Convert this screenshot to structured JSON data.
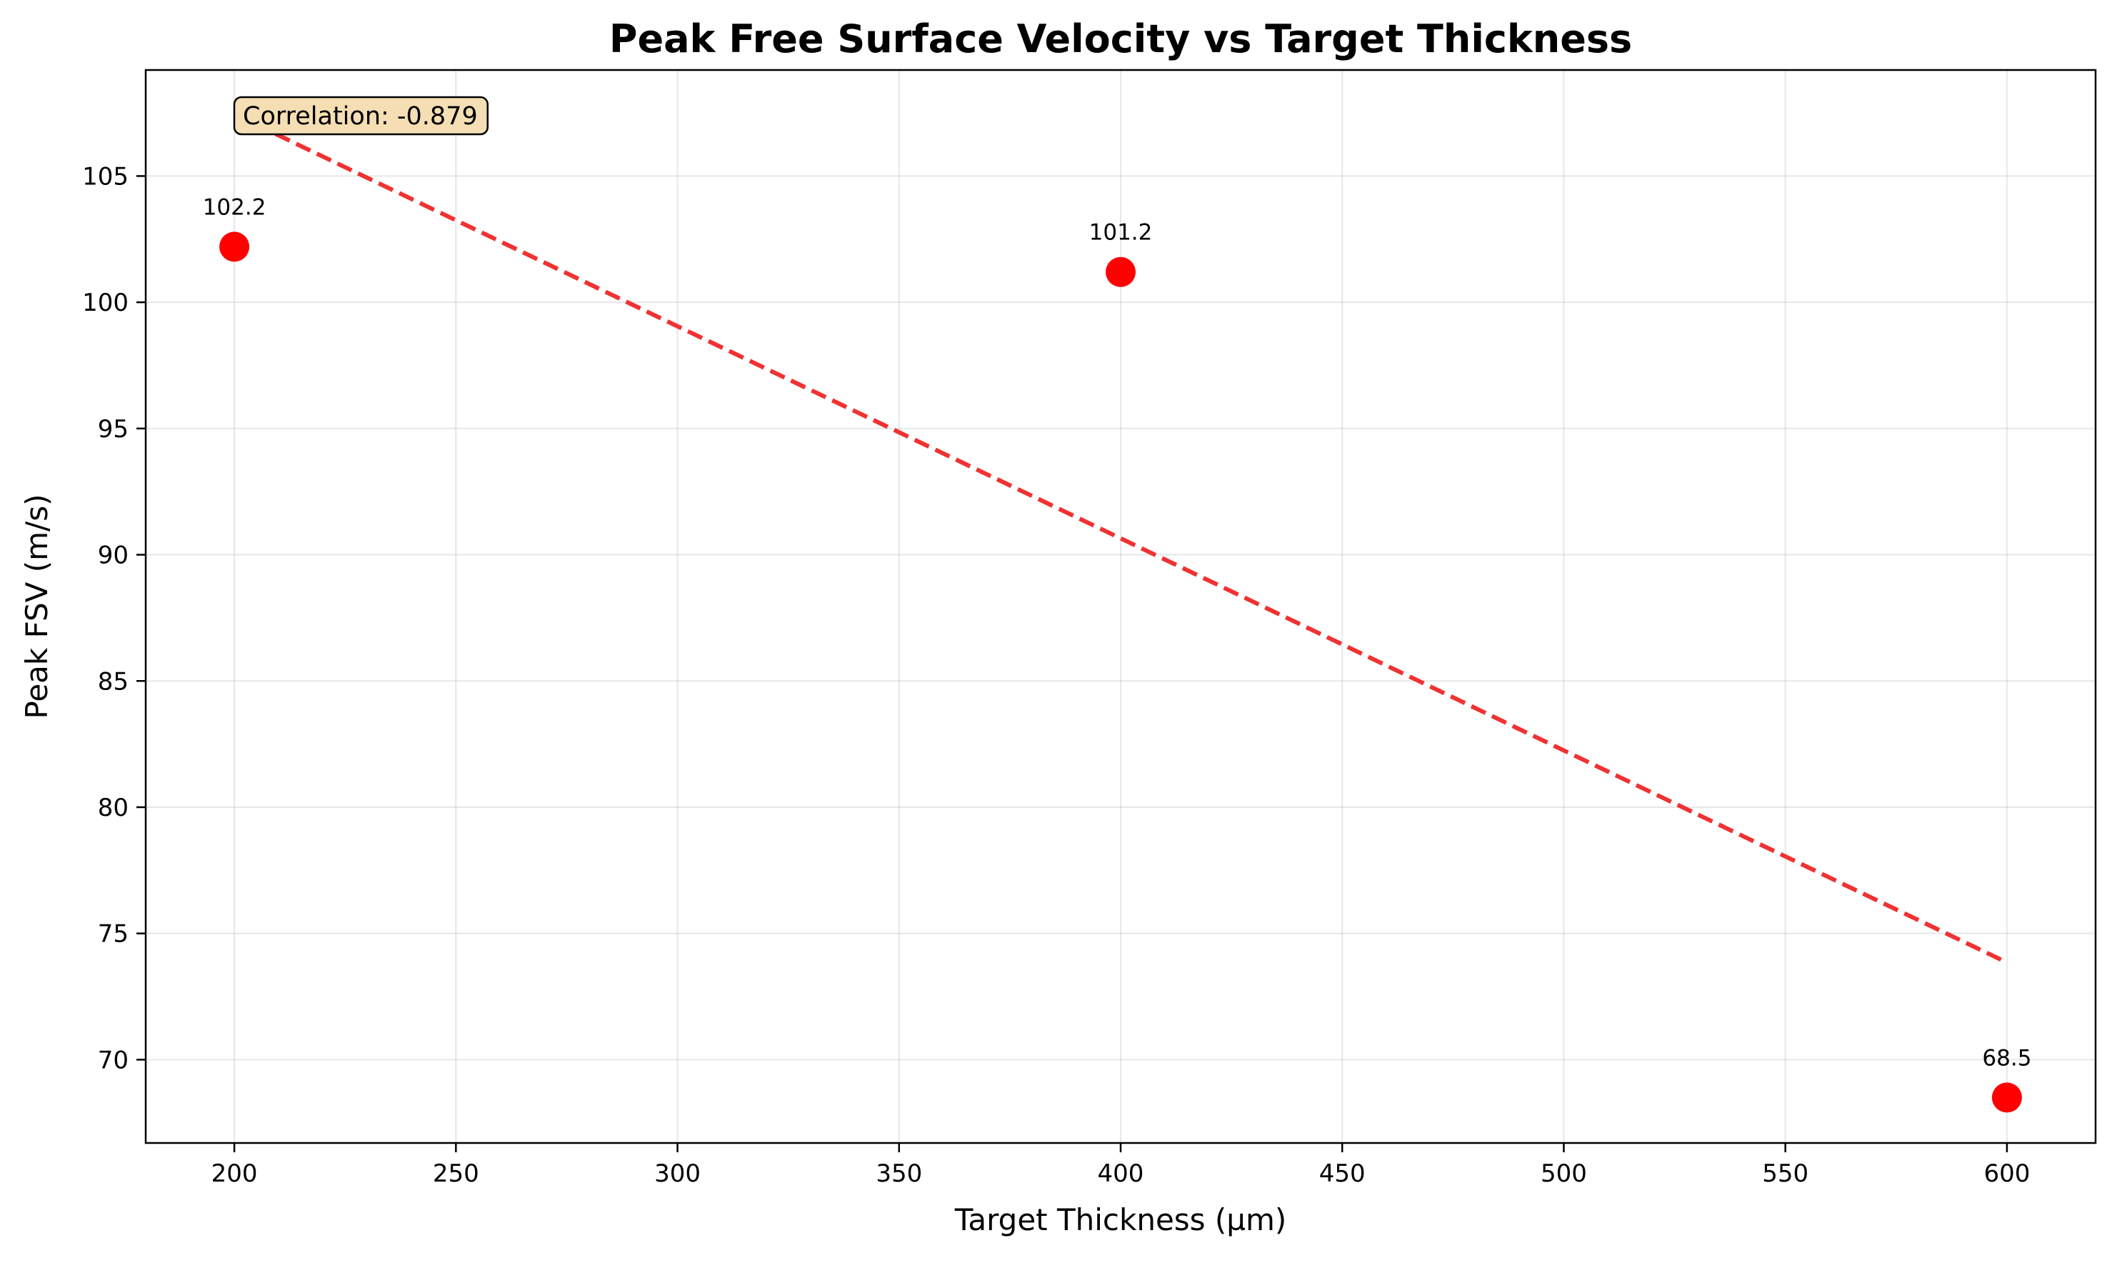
{
  "chart_data": {
    "type": "scatter",
    "title": "Peak Free Surface Velocity vs Target Thickness",
    "xlabel": "Target Thickness (µm)",
    "ylabel": "Peak FSV (m/s)",
    "xlim": [
      180,
      620
    ],
    "ylim": [
      66.7,
      109.2
    ],
    "xticks": [
      200,
      250,
      300,
      350,
      400,
      450,
      500,
      550,
      600
    ],
    "yticks": [
      70,
      75,
      80,
      85,
      90,
      95,
      100,
      105
    ],
    "grid": true,
    "series": [
      {
        "type": "scatter",
        "x": [
          200,
          400,
          600
        ],
        "y": [
          102.2,
          101.2,
          68.5
        ],
        "labels": [
          "102.2",
          "101.2",
          "68.5"
        ],
        "color": "#ff0000"
      },
      {
        "type": "line",
        "style": "dashed",
        "x": [
          200,
          600
        ],
        "y": [
          107.45,
          73.85
        ],
        "color": "#f03232"
      }
    ],
    "annotation": {
      "text": "Correlation: -0.879",
      "position": "top-left",
      "box_color": "#f5deb3"
    }
  }
}
